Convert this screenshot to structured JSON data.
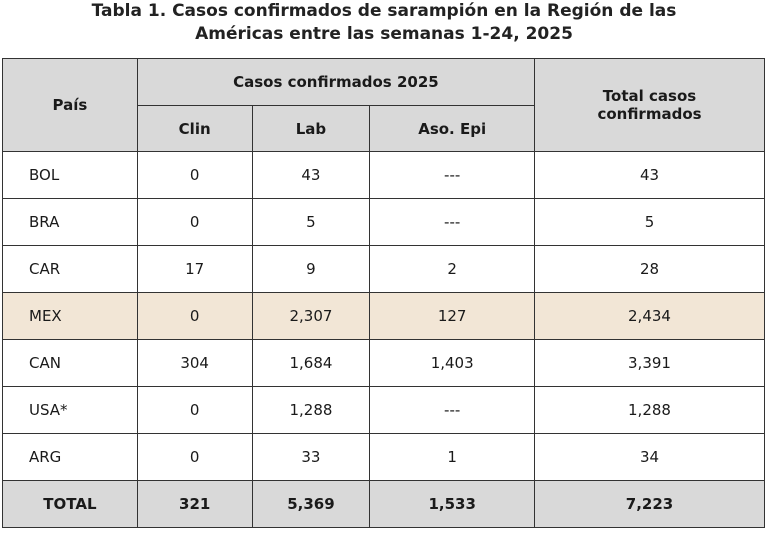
{
  "title": {
    "line1": "Tabla 1. Casos confirmados de sarampión en la Región de las",
    "line2": "Américas entre las semanas 1-24, 2025"
  },
  "headers": {
    "country": "País",
    "group": "Casos confirmados 2025",
    "clin": "Clin",
    "lab": "Lab",
    "aso": "Aso. Epi",
    "total": "Total casos confirmados"
  },
  "rows": [
    {
      "country": "BOL",
      "clin": "0",
      "lab": "43",
      "aso": "---",
      "total": "43"
    },
    {
      "country": "BRA",
      "clin": "0",
      "lab": "5",
      "aso": "---",
      "total": "5"
    },
    {
      "country": "CAR",
      "clin": "17",
      "lab": "9",
      "aso": "2",
      "total": "28"
    },
    {
      "country": "MEX",
      "clin": "0",
      "lab": "2,307",
      "aso": "127",
      "total": "2,434",
      "highlight": true
    },
    {
      "country": "CAN",
      "clin": "304",
      "lab": "1,684",
      "aso": "1,403",
      "total": "3,391"
    },
    {
      "country": "USA*",
      "clin": "0",
      "lab": "1,288",
      "aso": "---",
      "total": "1,288"
    },
    {
      "country": "ARG",
      "clin": "0",
      "lab": "33",
      "aso": "1",
      "total": "34"
    }
  ],
  "footer": {
    "country": "TOTAL",
    "clin": "321",
    "lab": "5,369",
    "aso": "1,533",
    "total": "7,223"
  },
  "colors": {
    "header_bg": "#d9d9d9",
    "highlight_bg": "#f2e6d6"
  }
}
